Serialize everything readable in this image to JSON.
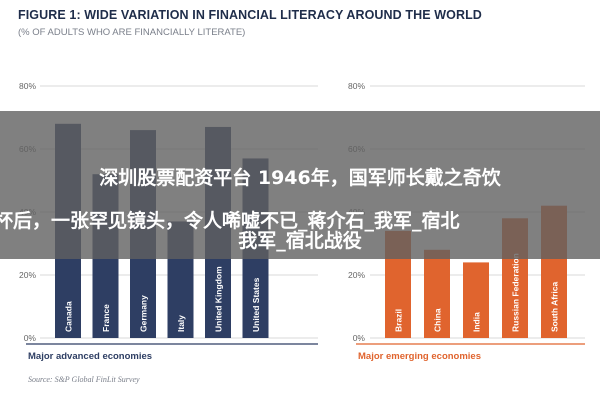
{
  "figure_title": "FIGURE 1: WIDE VARIATION IN FINANCIAL LITERACY AROUND THE WORLD",
  "figure_subtitle": "(% OF ADULTS WHO ARE FINANCIALLY LITERATE)",
  "overlay_caption": {
    "line1": "深圳股票配资平台 1946年，国军师长戴之奇饮",
    "line2": "杯后，一张罕见镜头，令人唏嘘不已_蒋介石_我军_宿北",
    "line3": "我军_宿北战役"
  },
  "colors": {
    "advanced_bar": "#2e3e63",
    "emerging_bar": "#e0642e",
    "grid": "#d9d9d9",
    "tick_text": "#666666",
    "group_label_advanced": "#2e3e63",
    "group_label_emerging": "#e0642e"
  },
  "chart_data": [
    {
      "type": "bar",
      "title": "",
      "group_label": "Major advanced economies",
      "source": "Source: S&P Global FinLit Survey",
      "ylim": [
        0,
        80
      ],
      "yticks": [
        "80%",
        "60%",
        "40%",
        "20%",
        "0%"
      ],
      "grid": true,
      "categories": [
        "Canada",
        "France",
        "Germany",
        "Italy",
        "United Kingdom",
        "United States"
      ],
      "values": [
        68,
        52,
        66,
        37,
        67,
        57
      ]
    },
    {
      "type": "bar",
      "title": "",
      "group_label": "Major emerging economies",
      "ylim": [
        0,
        80
      ],
      "yticks": [
        "80%",
        "60%",
        "40%",
        "20%",
        "0%"
      ],
      "grid": true,
      "categories": [
        "Brazil",
        "China",
        "India",
        "Russian Federation",
        "South Africa"
      ],
      "values": [
        34,
        28,
        24,
        38,
        42
      ]
    }
  ]
}
